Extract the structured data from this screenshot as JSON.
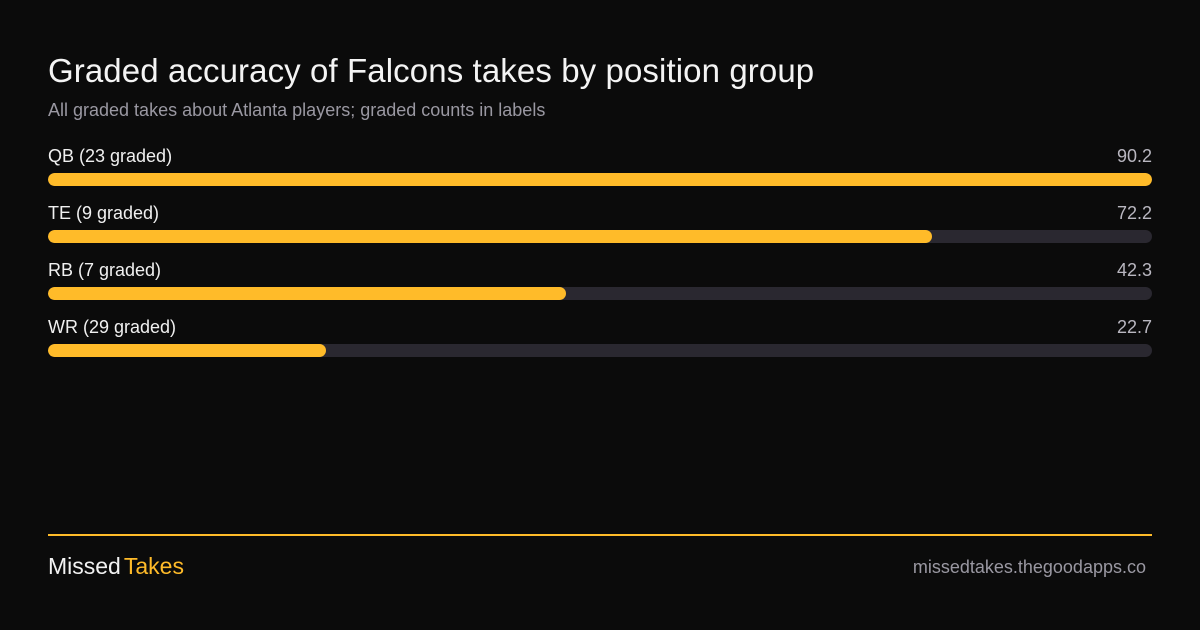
{
  "colors": {
    "accent": "#ffbb29",
    "track": "#2a2830",
    "background": "#0b0b0b"
  },
  "chart_data": {
    "type": "bar",
    "orientation": "horizontal",
    "title": "Graded accuracy of Falcons takes by position group",
    "subtitle": "All graded takes about Atlanta players; graded counts in labels",
    "categories": [
      "QB (23 graded)",
      "TE (9 graded)",
      "RB (7 graded)",
      "WR (29 graded)"
    ],
    "values": [
      90.2,
      72.2,
      42.3,
      22.7
    ],
    "value_labels": [
      "90.2",
      "72.2",
      "42.3",
      "22.7"
    ],
    "xlim": [
      0,
      90.2
    ],
    "grid": false
  },
  "footer": {
    "brand_part1": "Missed",
    "brand_part2": "Takes",
    "site": "missedtakes.thegoodapps.co"
  }
}
